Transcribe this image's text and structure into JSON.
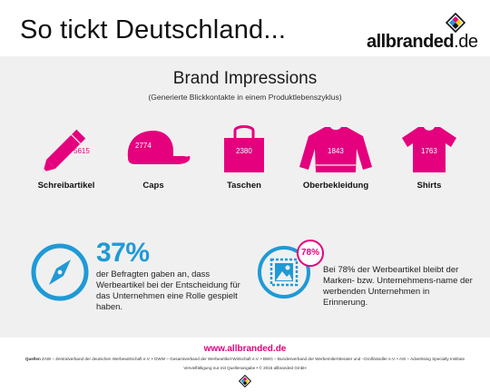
{
  "header": {
    "headline": "So tickt Deutschland...",
    "logo_brand": "allbranded",
    "logo_tld": ".de"
  },
  "section": {
    "title": "Brand Impressions",
    "subtitle": "(Generierte Blickkontakte in einem Produktlebenszyklus)"
  },
  "items": [
    {
      "label": "Schreibartikel",
      "count": "5615",
      "icon": "pencil-icon"
    },
    {
      "label": "Caps",
      "count": "2774",
      "icon": "cap-icon"
    },
    {
      "label": "Taschen",
      "count": "2380",
      "icon": "bag-icon"
    },
    {
      "label": "Oberbekleidung",
      "count": "1843",
      "icon": "sweater-icon"
    },
    {
      "label": "Shirts",
      "count": "1763",
      "icon": "shirt-icon"
    }
  ],
  "stat_left": {
    "percent": "37%",
    "text": "der Befragten gaben an, dass Werbeartikel bei der Entscheidung für das Unternehmen eine Rolle gespielt haben.",
    "icon": "compass-icon"
  },
  "stat_right": {
    "badge": "78%",
    "text": "Bei 78% der Werbeartikel bleibt der Marken- bzw. Unternehmens-name der werbenden Unternehmen in Erinnerung.",
    "icon": "picture-stamp-icon"
  },
  "footer": {
    "url": "www.allbranded.de",
    "sources_label": "Quellen",
    "sources_text": "ZAW – Zentralverband der deutschen Werbewirtschaft e.V.  •  GWW – Gesamtverband der Werbeartikel-Wirtschaft e.V.  •  BWG – Bundesverband der Werbemittel-Berater und –Großhändler e.V.  •  ASI – Advertising Specialty Institute",
    "copyright": "Vervielfältigung nur mit Quellenangabe  •  © 2016 allbranded GmbH"
  },
  "colors": {
    "accent_pink": "#e5007e",
    "accent_blue": "#1f9ad6",
    "panel_bg": "#f0f0f0"
  }
}
